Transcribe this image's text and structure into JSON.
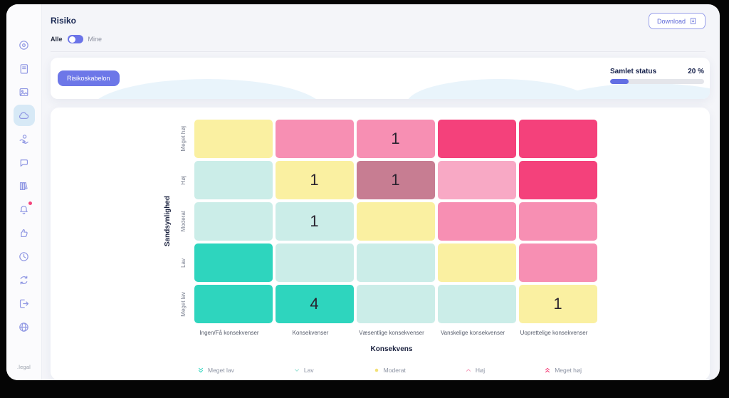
{
  "sidebar": {
    "logo_text": ".legal",
    "items": [
      {
        "name": "dashboard",
        "icon": "disc",
        "active": false,
        "badge": false
      },
      {
        "name": "documents",
        "icon": "journal",
        "active": false,
        "badge": false
      },
      {
        "name": "gallery",
        "icon": "image",
        "active": false,
        "badge": false
      },
      {
        "name": "risk",
        "icon": "cloud",
        "active": true,
        "badge": false
      },
      {
        "name": "hand-coin",
        "icon": "hand-coin",
        "active": false,
        "badge": false
      },
      {
        "name": "chat",
        "icon": "chat",
        "active": false,
        "badge": false
      },
      {
        "name": "library",
        "icon": "books",
        "active": false,
        "badge": false
      },
      {
        "name": "notifications",
        "icon": "bell",
        "active": false,
        "badge": true
      },
      {
        "name": "feedback",
        "icon": "thumbs-up",
        "active": false,
        "badge": false
      },
      {
        "name": "history",
        "icon": "clock",
        "active": false,
        "badge": false
      },
      {
        "name": "sync",
        "icon": "sync",
        "active": false,
        "badge": false
      },
      {
        "name": "logout",
        "icon": "logout",
        "active": false,
        "badge": false
      },
      {
        "name": "language",
        "icon": "globe",
        "active": false,
        "badge": false
      }
    ]
  },
  "header": {
    "title": "Risiko",
    "download_label": "Download"
  },
  "filter_toggle": {
    "left_label": "Alle",
    "right_label": "Mine",
    "state": "left"
  },
  "toolbar_card": {
    "template_button_label": "Risikoskabelon",
    "status_label": "Samlet status",
    "status_value": "20 %",
    "progress_percent": 20
  },
  "palette": {
    "teal": "#2ed5be",
    "lightteal": "#cbede8",
    "yellow": "#faf0a1",
    "pink": "#f78fb3",
    "lightpink": "#f8a9c5",
    "hotpink": "#f4417b",
    "mauve": "#c77d92"
  },
  "matrix": {
    "y_axis_label": "Sandsynlighed",
    "x_axis_label": "Konsekvens",
    "col_labels": [
      "Ingen/Få konsekvenser",
      "Konsekvenser",
      "Væsentlige konsekvenser",
      "Vanskelige konsekvenser",
      "Uoprettelige konsekvenser"
    ],
    "rows": [
      {
        "label": "Meget høj",
        "cells": [
          {
            "color": "yellow",
            "value": ""
          },
          {
            "color": "pink",
            "value": ""
          },
          {
            "color": "pink",
            "value": "1"
          },
          {
            "color": "hotpink",
            "value": ""
          },
          {
            "color": "hotpink",
            "value": ""
          }
        ]
      },
      {
        "label": "Høj",
        "cells": [
          {
            "color": "lightteal",
            "value": ""
          },
          {
            "color": "yellow",
            "value": "1"
          },
          {
            "color": "mauve",
            "value": "1"
          },
          {
            "color": "lightpink",
            "value": ""
          },
          {
            "color": "hotpink",
            "value": ""
          }
        ]
      },
      {
        "label": "Moderat",
        "cells": [
          {
            "color": "lightteal",
            "value": ""
          },
          {
            "color": "lightteal",
            "value": "1"
          },
          {
            "color": "yellow",
            "value": ""
          },
          {
            "color": "pink",
            "value": ""
          },
          {
            "color": "pink",
            "value": ""
          }
        ]
      },
      {
        "label": "Lav",
        "cells": [
          {
            "color": "teal",
            "value": ""
          },
          {
            "color": "lightteal",
            "value": ""
          },
          {
            "color": "lightteal",
            "value": ""
          },
          {
            "color": "yellow",
            "value": ""
          },
          {
            "color": "pink",
            "value": ""
          }
        ]
      },
      {
        "label": "Meget lav",
        "cells": [
          {
            "color": "teal",
            "value": ""
          },
          {
            "color": "teal",
            "value": "4"
          },
          {
            "color": "lightteal",
            "value": ""
          },
          {
            "color": "lightteal",
            "value": ""
          },
          {
            "color": "yellow",
            "value": "1"
          }
        ]
      }
    ],
    "legend": [
      {
        "label": "Meget lav",
        "icon": "chevrons-down",
        "color": "#2ed5be"
      },
      {
        "label": "Lav",
        "icon": "chevron-down",
        "color": "#9ce2d6"
      },
      {
        "label": "Moderat",
        "icon": "dot",
        "color": "#f3e178"
      },
      {
        "label": "Høj",
        "icon": "chevron-up",
        "color": "#f79fbc"
      },
      {
        "label": "Meget høj",
        "icon": "chevrons-up",
        "color": "#f4437b"
      }
    ]
  },
  "chart_data": {
    "type": "heatmap",
    "title": "Risiko matrix",
    "xlabel": "Konsekvens",
    "ylabel": "Sandsynlighed",
    "x_categories": [
      "Ingen/Få konsekvenser",
      "Konsekvenser",
      "Væsentlige konsekvenser",
      "Vanskelige konsekvenser",
      "Uoprettelige konsekvenser"
    ],
    "y_categories": [
      "Meget høj",
      "Høj",
      "Moderat",
      "Lav",
      "Meget lav"
    ],
    "counts": [
      [
        null,
        null,
        1,
        null,
        null
      ],
      [
        null,
        1,
        1,
        null,
        null
      ],
      [
        null,
        1,
        null,
        null,
        null
      ],
      [
        null,
        null,
        null,
        null,
        null
      ],
      [
        null,
        4,
        null,
        null,
        1
      ]
    ],
    "risk_levels": [
      [
        "moderat",
        "hoj",
        "hoj",
        "meget-hoj",
        "meget-hoj"
      ],
      [
        "lav",
        "moderat",
        "hoj",
        "hoj",
        "meget-hoj"
      ],
      [
        "lav",
        "lav",
        "moderat",
        "hoj",
        "hoj"
      ],
      [
        "meget-lav",
        "lav",
        "lav",
        "moderat",
        "hoj"
      ],
      [
        "meget-lav",
        "meget-lav",
        "lav",
        "lav",
        "moderat"
      ]
    ],
    "legend_position": "bottom"
  }
}
